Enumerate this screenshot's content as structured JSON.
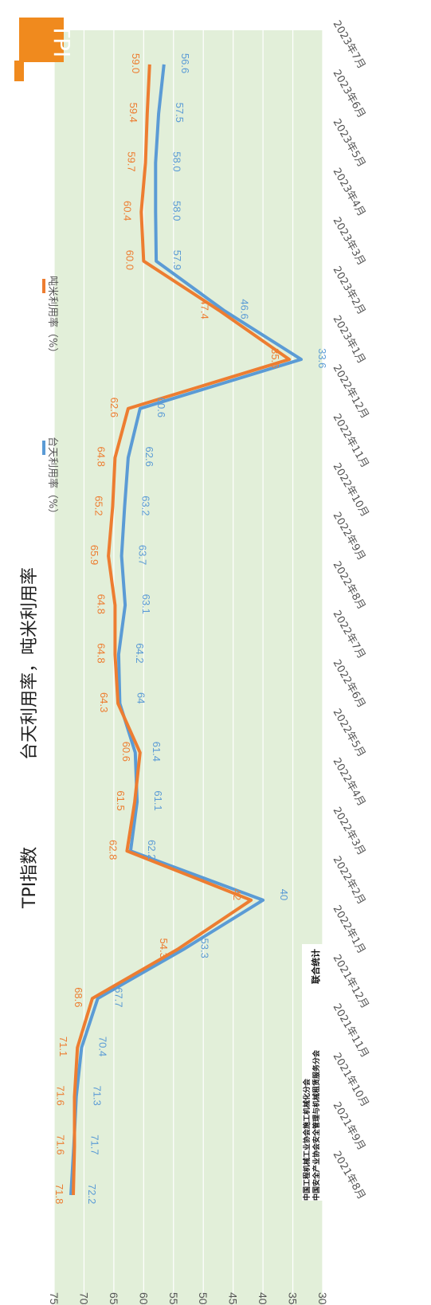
{
  "logo": {
    "text": "TPI",
    "color": "#f08a1e"
  },
  "source": {
    "line1": "中国工程机械工业协会施工机械化分会",
    "line2": "中国安全产业协会安全管理与机械租赁服务分会",
    "suffix": "联合统计"
  },
  "chart_data": {
    "type": "line",
    "title_main": "TPI指数",
    "title_sub": "台天利用率，吨米利用率",
    "categories": [
      "2021年8月",
      "2021年9月",
      "2021年10月",
      "2021年11月",
      "2021年12月",
      "2022年1月",
      "2022年2月",
      "2022年3月",
      "2022年4月",
      "2022年5月",
      "2022年6月",
      "2022年7月",
      "2022年8月",
      "2022年9月",
      "2022年10月",
      "2022年11月",
      "2022年12月",
      "2023年1月",
      "2023年2月",
      "2023年3月",
      "2023年4月",
      "2023年5月",
      "2023年6月",
      "2023年7月"
    ],
    "series": [
      {
        "name": "台天利用率（%）",
        "color": "#5b9bd5",
        "values": [
          72.2,
          71.7,
          71.3,
          70.4,
          67.7,
          53.3,
          40,
          62.2,
          61.1,
          61.4,
          64,
          64.2,
          63.1,
          63.7,
          63.2,
          62.6,
          60.6,
          33.6,
          46.6,
          57.9,
          58.0,
          58.0,
          57.5,
          56.6
        ],
        "labels": [
          "72.2",
          "71.7",
          "71.3",
          "70.4",
          "67.7",
          "53.3",
          "40",
          "62.2",
          "61.1",
          "61.4",
          "64",
          "64.2",
          "63.1",
          "63.7",
          "63.2",
          "62.6",
          "60.6",
          "33.6",
          "46.6",
          "57.9",
          "58.0",
          "58.0",
          "57.5",
          "56.6"
        ]
      },
      {
        "name": "吨米利用率（%）",
        "color": "#ed7d31",
        "values": [
          71.8,
          71.6,
          71.6,
          71.1,
          68.6,
          54.3,
          42,
          62.8,
          61.5,
          60.6,
          64.3,
          64.8,
          64.8,
          65.9,
          65.2,
          64.8,
          62.6,
          35.6,
          47.4,
          60.0,
          60.4,
          59.7,
          59.4,
          59.0
        ],
        "labels": [
          "71.8",
          "71.6",
          "71.6",
          "71.1",
          "68.6",
          "54.3",
          "42",
          "62.8",
          "61.5",
          "60.6",
          "64.3",
          "64.8",
          "64.8",
          "65.9",
          "65.2",
          "64.8",
          "62.6",
          "35.6",
          "47.4",
          "60.0",
          "60.4",
          "59.7",
          "59.4",
          "59.0"
        ]
      }
    ],
    "ylim": [
      30,
      75
    ],
    "yticks": [
      "75",
      "70",
      "65",
      "60",
      "55",
      "50",
      "45",
      "40",
      "35",
      "30"
    ],
    "grid": true,
    "plot_background": "#e2efd9",
    "legend_position": "top-right"
  }
}
